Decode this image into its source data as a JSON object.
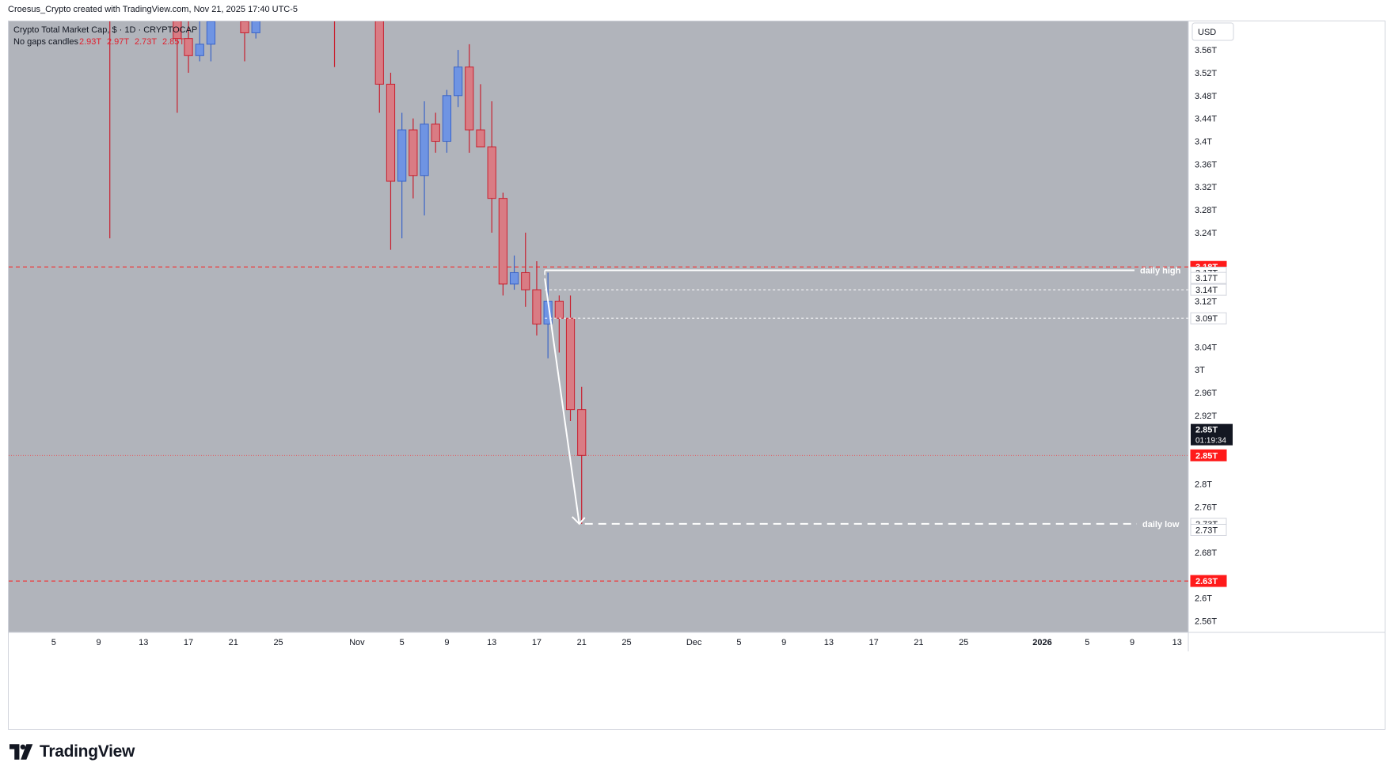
{
  "header": {
    "attribution": "Croesus_Crypto created with TradingView.com, Nov 21, 2025 17:40 UTC-5"
  },
  "legend": {
    "symbol_line": "Crypto Total Market Cap, $ · 1D · CRYPTOCAP",
    "candles_label": "No gaps candles",
    "ohlc": [
      "2.93T",
      "2.97T",
      "2.73T",
      "2.85T"
    ]
  },
  "currency_button": "USD",
  "footer": {
    "brand": "TradingView"
  },
  "colors": {
    "plot_bg": "#b1b4bb",
    "up_fill": "#6f94e3",
    "up_border": "#3a64c8",
    "down_fill": "#d97c84",
    "down_border": "#c8202f",
    "red_line": "#ff1a1a",
    "white_line": "#ffffff",
    "last_price_bg": "#131722"
  },
  "chart_data": {
    "type": "candlestick",
    "y_unit": "USD market cap (T)",
    "x_range": [
      "2025-10-01",
      "2026-01-14"
    ],
    "y_range": [
      2.54,
      3.61
    ],
    "x_ticks": [
      {
        "date": "2025-10-05",
        "label": "5"
      },
      {
        "date": "2025-10-09",
        "label": "9"
      },
      {
        "date": "2025-10-13",
        "label": "13"
      },
      {
        "date": "2025-10-17",
        "label": "17"
      },
      {
        "date": "2025-10-21",
        "label": "21"
      },
      {
        "date": "2025-10-25",
        "label": "25"
      },
      {
        "date": "2025-11-01",
        "label": "Nov"
      },
      {
        "date": "2025-11-05",
        "label": "5"
      },
      {
        "date": "2025-11-09",
        "label": "9"
      },
      {
        "date": "2025-11-13",
        "label": "13"
      },
      {
        "date": "2025-11-17",
        "label": "17"
      },
      {
        "date": "2025-11-21",
        "label": "21"
      },
      {
        "date": "2025-11-25",
        "label": "25"
      },
      {
        "date": "2025-12-01",
        "label": "Dec"
      },
      {
        "date": "2025-12-05",
        "label": "5"
      },
      {
        "date": "2025-12-09",
        "label": "9"
      },
      {
        "date": "2025-12-13",
        "label": "13"
      },
      {
        "date": "2025-12-17",
        "label": "17"
      },
      {
        "date": "2025-12-21",
        "label": "21"
      },
      {
        "date": "2025-12-25",
        "label": "25"
      },
      {
        "date": "2026-01-01",
        "label": "2026"
      },
      {
        "date": "2026-01-05",
        "label": "5"
      },
      {
        "date": "2026-01-09",
        "label": "9"
      },
      {
        "date": "2026-01-13",
        "label": "13"
      }
    ],
    "y_ticks": [
      {
        "v": 3.56,
        "label": "3.56T"
      },
      {
        "v": 3.52,
        "label": "3.52T"
      },
      {
        "v": 3.48,
        "label": "3.48T"
      },
      {
        "v": 3.44,
        "label": "3.44T"
      },
      {
        "v": 3.4,
        "label": "3.4T"
      },
      {
        "v": 3.36,
        "label": "3.36T"
      },
      {
        "v": 3.32,
        "label": "3.32T"
      },
      {
        "v": 3.28,
        "label": "3.28T"
      },
      {
        "v": 3.24,
        "label": "3.24T"
      },
      {
        "v": 3.12,
        "label": "3.12T"
      },
      {
        "v": 3.04,
        "label": "3.04T"
      },
      {
        "v": 3.0,
        "label": "3T"
      },
      {
        "v": 2.96,
        "label": "2.96T"
      },
      {
        "v": 2.92,
        "label": "2.92T"
      },
      {
        "v": 2.8,
        "label": "2.8T"
      },
      {
        "v": 2.76,
        "label": "2.76T"
      },
      {
        "v": 2.68,
        "label": "2.68T"
      },
      {
        "v": 2.6,
        "label": "2.6T"
      },
      {
        "v": 2.56,
        "label": "2.56T"
      }
    ],
    "candles": [
      {
        "d": "2025-10-10",
        "o": 3.8,
        "h": 3.82,
        "l": 3.23,
        "c": 3.75
      },
      {
        "d": "2025-10-16",
        "o": 3.63,
        "h": 3.7,
        "l": 3.45,
        "c": 3.58
      },
      {
        "d": "2025-10-17",
        "o": 3.58,
        "h": 3.65,
        "l": 3.52,
        "c": 3.55
      },
      {
        "d": "2025-10-18",
        "o": 3.55,
        "h": 3.62,
        "l": 3.54,
        "c": 3.57
      },
      {
        "d": "2025-10-19",
        "o": 3.57,
        "h": 3.64,
        "l": 3.54,
        "c": 3.61
      },
      {
        "d": "2025-10-22",
        "o": 3.61,
        "h": 3.64,
        "l": 3.54,
        "c": 3.59
      },
      {
        "d": "2025-10-23",
        "o": 3.59,
        "h": 3.66,
        "l": 3.58,
        "c": 3.66
      },
      {
        "d": "2025-10-30",
        "o": 3.66,
        "h": 3.68,
        "l": 3.53,
        "c": 3.63
      },
      {
        "d": "2025-10-31",
        "o": 3.63,
        "h": 3.65,
        "l": 3.62,
        "c": 3.64
      },
      {
        "d": "2025-11-03",
        "o": 3.7,
        "h": 3.72,
        "l": 3.45,
        "c": 3.5
      },
      {
        "d": "2025-11-04",
        "o": 3.5,
        "h": 3.52,
        "l": 3.21,
        "c": 3.33
      },
      {
        "d": "2025-11-05",
        "o": 3.33,
        "h": 3.45,
        "l": 3.23,
        "c": 3.42
      },
      {
        "d": "2025-11-06",
        "o": 3.42,
        "h": 3.44,
        "l": 3.3,
        "c": 3.34
      },
      {
        "d": "2025-11-07",
        "o": 3.34,
        "h": 3.47,
        "l": 3.27,
        "c": 3.43
      },
      {
        "d": "2025-11-08",
        "o": 3.43,
        "h": 3.45,
        "l": 3.38,
        "c": 3.4
      },
      {
        "d": "2025-11-09",
        "o": 3.4,
        "h": 3.49,
        "l": 3.38,
        "c": 3.48
      },
      {
        "d": "2025-11-10",
        "o": 3.48,
        "h": 3.56,
        "l": 3.46,
        "c": 3.53
      },
      {
        "d": "2025-11-11",
        "o": 3.53,
        "h": 3.57,
        "l": 3.38,
        "c": 3.42
      },
      {
        "d": "2025-11-12",
        "o": 3.42,
        "h": 3.5,
        "l": 3.39,
        "c": 3.39
      },
      {
        "d": "2025-11-13",
        "o": 3.39,
        "h": 3.47,
        "l": 3.24,
        "c": 3.3
      },
      {
        "d": "2025-11-14",
        "o": 3.3,
        "h": 3.31,
        "l": 3.13,
        "c": 3.15
      },
      {
        "d": "2025-11-15",
        "o": 3.15,
        "h": 3.2,
        "l": 3.14,
        "c": 3.17
      },
      {
        "d": "2025-11-16",
        "o": 3.17,
        "h": 3.24,
        "l": 3.11,
        "c": 3.14
      },
      {
        "d": "2025-11-17",
        "o": 3.14,
        "h": 3.19,
        "l": 3.06,
        "c": 3.08
      },
      {
        "d": "2025-11-18",
        "o": 3.08,
        "h": 3.17,
        "l": 3.02,
        "c": 3.12
      },
      {
        "d": "2025-11-19",
        "o": 3.12,
        "h": 3.13,
        "l": 3.03,
        "c": 3.09
      },
      {
        "d": "2025-11-20",
        "o": 3.09,
        "h": 3.13,
        "l": 2.91,
        "c": 2.93
      },
      {
        "d": "2025-11-21",
        "o": 2.93,
        "h": 2.97,
        "l": 2.73,
        "c": 2.85
      }
    ],
    "annotations": {
      "daily_high": {
        "label": "daily high",
        "value": 3.17,
        "from": "2025-11-18"
      },
      "daily_low": {
        "label": "daily low",
        "value": 2.73,
        "from": "2025-11-21"
      },
      "dashed_levels": [
        3.14,
        3.09
      ],
      "red_levels": [
        3.18,
        2.63
      ],
      "current_price": 2.85,
      "arrow": {
        "from": {
          "d": "2025-11-18",
          "v": 3.16
        },
        "to": {
          "d": "2025-11-21",
          "v": 2.73
        }
      }
    },
    "price_labels": {
      "red_high": "3.18T",
      "white_170": "3.17T",
      "daily_high": "3.17T",
      "dash_314": "3.14T",
      "dash_309": "3.09T",
      "last_price": "2.85T",
      "countdown": "01:19:34",
      "close_red": "2.85T",
      "daily_low": "2.73T",
      "low2": "2.73T",
      "red_low": "2.63T"
    }
  }
}
